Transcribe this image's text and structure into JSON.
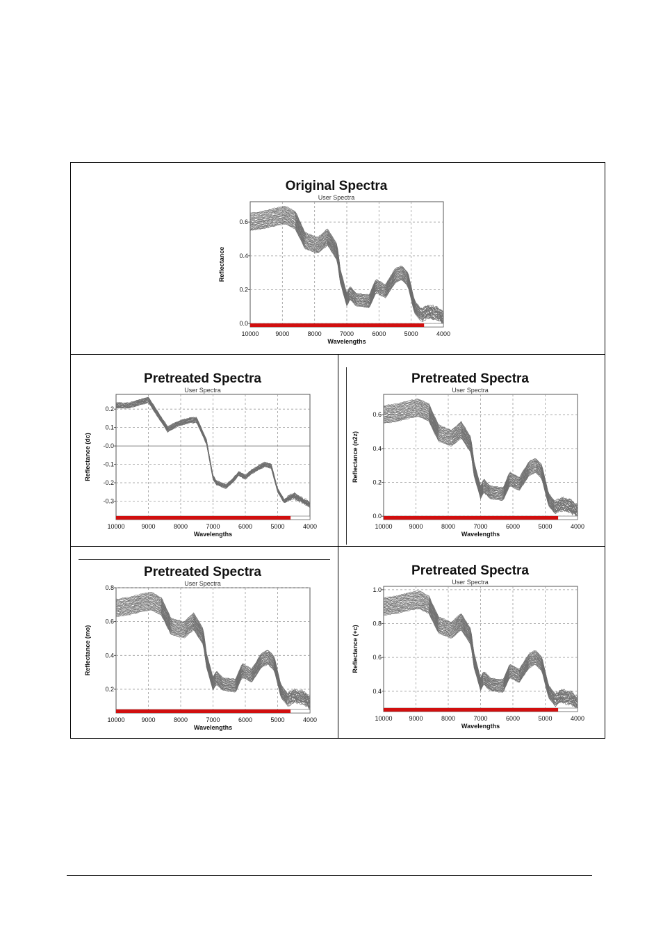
{
  "chart_data": [
    {
      "id": "original",
      "type": "line",
      "title": "Original Spectra",
      "subtitle": "User Spectra",
      "xlabel": "Wavelengths",
      "ylabel": "Reflectance",
      "xlim": [
        10000,
        4000
      ],
      "ylim": [
        -0.02,
        0.72
      ],
      "xticks": [
        10000,
        9000,
        8000,
        7000,
        6000,
        5000,
        4000
      ],
      "yticks": [
        0.0,
        0.2,
        0.4,
        0.6
      ],
      "ytick_labels": [
        "0.0",
        "0.2",
        "0.4",
        "0.6"
      ],
      "zero_line": false,
      "n_series": 30,
      "series_spread": 0.11,
      "profile_x": [
        10000,
        9600,
        9200,
        8900,
        8600,
        8300,
        7900,
        7600,
        7300,
        7200,
        7000,
        6900,
        6700,
        6300,
        6100,
        5800,
        5500,
        5300,
        5100,
        4900,
        4700,
        4500,
        4200,
        4000
      ],
      "profile_y": [
        0.6,
        0.61,
        0.63,
        0.64,
        0.61,
        0.49,
        0.46,
        0.51,
        0.42,
        0.28,
        0.14,
        0.18,
        0.14,
        0.13,
        0.22,
        0.19,
        0.28,
        0.3,
        0.26,
        0.1,
        0.05,
        0.07,
        0.06,
        0.03
      ],
      "range_bar_end": 4600,
      "grid": true
    },
    {
      "id": "pretreated-dc",
      "type": "line",
      "title": "Pretreated Spectra",
      "subtitle": "User Spectra",
      "xlabel": "Wavelengths",
      "ylabel": "Reflectance (dc)",
      "xlim": [
        10000,
        4000
      ],
      "ylim": [
        -0.4,
        0.28
      ],
      "xticks": [
        10000,
        9000,
        8000,
        7000,
        6000,
        5000,
        4000
      ],
      "yticks": [
        0.2,
        0.1,
        0.0,
        -0.1,
        -0.2,
        -0.3
      ],
      "ytick_labels": [
        "0.2",
        "0.1",
        "-0.0",
        "-0.1",
        "-0.2",
        "-0.3"
      ],
      "zero_line": true,
      "n_series": 22,
      "series_spread": 0.03,
      "profile_x": [
        10000,
        9600,
        9200,
        9000,
        8700,
        8400,
        8100,
        7700,
        7500,
        7200,
        7000,
        6900,
        6600,
        6400,
        6200,
        6000,
        5800,
        5400,
        5200,
        5000,
        4800,
        4500,
        4200,
        4000
      ],
      "profile_y": [
        0.22,
        0.22,
        0.24,
        0.25,
        0.17,
        0.09,
        0.12,
        0.14,
        0.14,
        0.02,
        -0.17,
        -0.2,
        -0.22,
        -0.19,
        -0.15,
        -0.17,
        -0.14,
        -0.1,
        -0.11,
        -0.24,
        -0.3,
        -0.27,
        -0.3,
        -0.32
      ],
      "range_bar_end": 4600,
      "grid": true
    },
    {
      "id": "pretreated-n2z",
      "type": "line",
      "title": "Pretreated Spectra",
      "subtitle": "User Spectra",
      "xlabel": "Wavelengths",
      "ylabel": "Reflectance (n2z)",
      "xlim": [
        10000,
        4000
      ],
      "ylim": [
        -0.02,
        0.72
      ],
      "xticks": [
        10000,
        9000,
        8000,
        7000,
        6000,
        5000,
        4000
      ],
      "yticks": [
        0.0,
        0.2,
        0.4,
        0.6
      ],
      "ytick_labels": [
        "0.0",
        "0.2",
        "0.4",
        "0.6"
      ],
      "zero_line": false,
      "n_series": 30,
      "series_spread": 0.11,
      "profile_x": [
        10000,
        9600,
        9200,
        8900,
        8600,
        8300,
        7900,
        7600,
        7300,
        7200,
        7000,
        6900,
        6700,
        6300,
        6100,
        5800,
        5500,
        5300,
        5100,
        4900,
        4700,
        4500,
        4200,
        4000
      ],
      "profile_y": [
        0.6,
        0.61,
        0.63,
        0.64,
        0.61,
        0.49,
        0.46,
        0.51,
        0.42,
        0.28,
        0.14,
        0.18,
        0.14,
        0.13,
        0.22,
        0.19,
        0.28,
        0.3,
        0.26,
        0.1,
        0.05,
        0.07,
        0.06,
        0.03
      ],
      "range_bar_end": 4600,
      "grid": true
    },
    {
      "id": "pretreated-mo",
      "type": "line",
      "title": "Pretreated Spectra",
      "subtitle": "User Spectra",
      "xlabel": "Wavelengths",
      "ylabel": "Reflectance (mo)",
      "xlim": [
        10000,
        4000
      ],
      "ylim": [
        0.06,
        0.8
      ],
      "xticks": [
        10000,
        9000,
        8000,
        7000,
        6000,
        5000,
        4000
      ],
      "yticks": [
        0.2,
        0.4,
        0.6,
        0.8
      ],
      "ytick_labels": [
        "0.2",
        "0.4",
        "0.6",
        "0.8"
      ],
      "zero_line": false,
      "n_series": 30,
      "series_spread": 0.11,
      "profile_x": [
        10000,
        9600,
        9200,
        8900,
        8600,
        8300,
        7900,
        7600,
        7300,
        7200,
        7000,
        6900,
        6700,
        6300,
        6100,
        5800,
        5500,
        5300,
        5100,
        4900,
        4700,
        4500,
        4200,
        4000
      ],
      "profile_y": [
        0.68,
        0.69,
        0.71,
        0.72,
        0.69,
        0.57,
        0.55,
        0.6,
        0.51,
        0.37,
        0.23,
        0.27,
        0.23,
        0.22,
        0.31,
        0.28,
        0.37,
        0.39,
        0.35,
        0.19,
        0.14,
        0.16,
        0.15,
        0.12
      ],
      "range_bar_end": 4600,
      "grid": true
    },
    {
      "id": "pretreated-c",
      "type": "line",
      "title": "Pretreated Spectra",
      "subtitle": "User Spectra",
      "xlabel": "Wavelengths",
      "ylabel": "Reflectance (+c)",
      "xlim": [
        10000,
        4000
      ],
      "ylim": [
        0.28,
        1.02
      ],
      "xticks": [
        10000,
        9000,
        8000,
        7000,
        6000,
        5000,
        4000
      ],
      "yticks": [
        0.4,
        0.6,
        0.8,
        1.0
      ],
      "ytick_labels": [
        "0.4",
        "0.6",
        "0.8",
        "1.0"
      ],
      "zero_line": false,
      "n_series": 30,
      "series_spread": 0.11,
      "profile_x": [
        10000,
        9600,
        9200,
        8900,
        8600,
        8300,
        7900,
        7600,
        7300,
        7200,
        7000,
        6900,
        6700,
        6300,
        6100,
        5800,
        5500,
        5300,
        5100,
        4900,
        4700,
        4500,
        4200,
        4000
      ],
      "profile_y": [
        0.9,
        0.91,
        0.93,
        0.94,
        0.91,
        0.79,
        0.76,
        0.81,
        0.72,
        0.58,
        0.44,
        0.48,
        0.44,
        0.43,
        0.52,
        0.49,
        0.58,
        0.6,
        0.56,
        0.4,
        0.35,
        0.37,
        0.36,
        0.33
      ],
      "range_bar_end": 4600,
      "grid": true
    }
  ],
  "colors": {
    "spectrum_line": "#6e6e6e",
    "range_bar": "#d10f0f",
    "grid": "#9a9a9a"
  }
}
